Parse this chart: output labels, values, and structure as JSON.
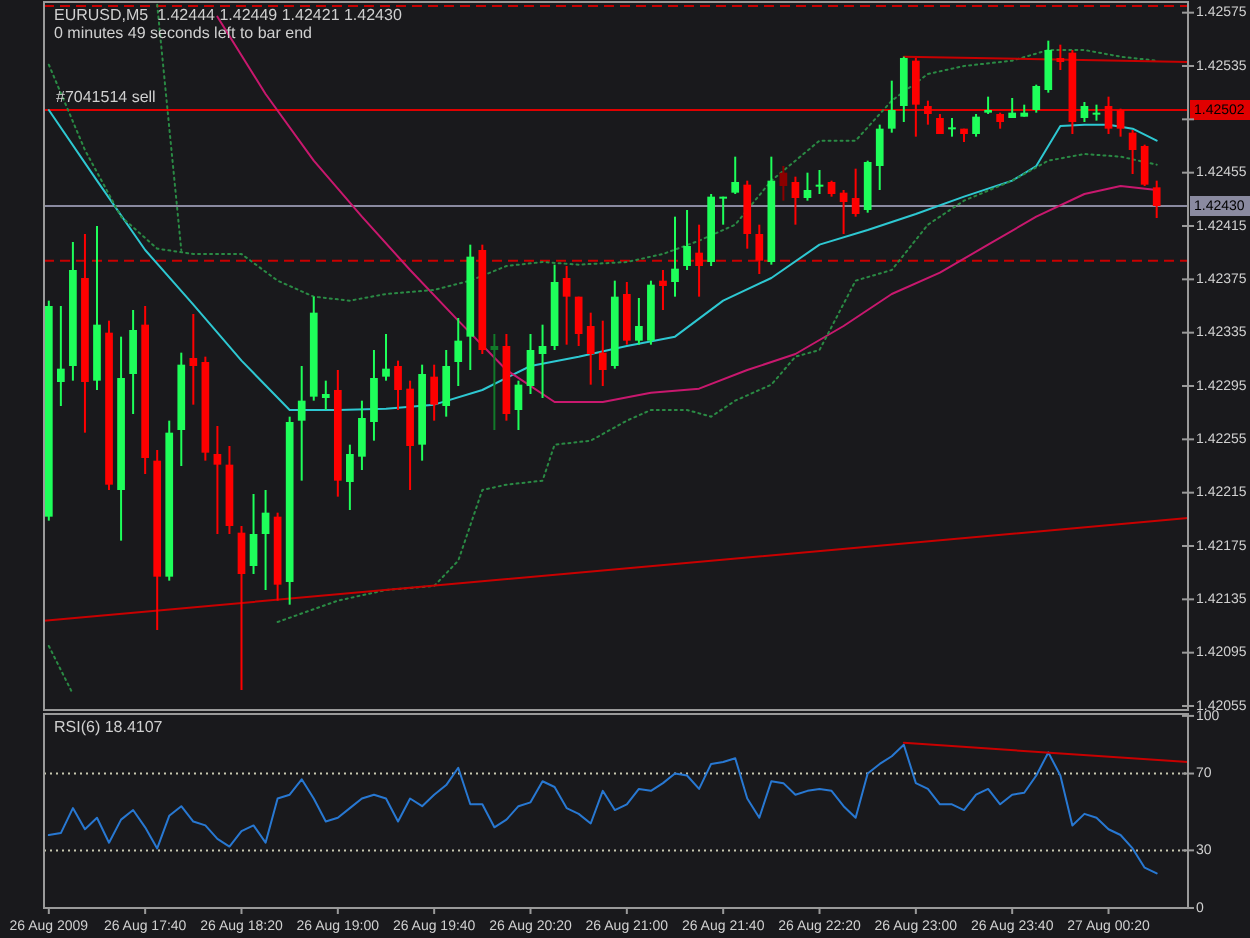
{
  "chart_data": [
    {
      "type": "candlestick",
      "title": "EURUSD,M5  1.42444 1.42449 1.42421 1.42430",
      "subtitle": "0 minutes 49 seconds left to bar end",
      "x": [
        "2009-08-26T17:00",
        "2009-08-26T17:05",
        "2009-08-26T17:10",
        "2009-08-26T17:15",
        "2009-08-26T17:20",
        "2009-08-26T17:25",
        "2009-08-26T17:30",
        "2009-08-26T17:35",
        "2009-08-26T17:40",
        "2009-08-26T17:45",
        "2009-08-26T17:50",
        "2009-08-26T17:55",
        "2009-08-26T18:00",
        "2009-08-26T18:05",
        "2009-08-26T18:10",
        "2009-08-26T18:15",
        "2009-08-26T18:20",
        "2009-08-26T18:25",
        "2009-08-26T18:30",
        "2009-08-26T18:35",
        "2009-08-26T18:40",
        "2009-08-26T18:45",
        "2009-08-26T18:50",
        "2009-08-26T18:55",
        "2009-08-26T19:00",
        "2009-08-26T19:05",
        "2009-08-26T19:10",
        "2009-08-26T19:15",
        "2009-08-26T19:20",
        "2009-08-26T19:25",
        "2009-08-26T19:30",
        "2009-08-26T19:35",
        "2009-08-26T19:40",
        "2009-08-26T19:45",
        "2009-08-26T19:50",
        "2009-08-26T19:55",
        "2009-08-26T20:00",
        "2009-08-26T20:05",
        "2009-08-26T20:10",
        "2009-08-26T20:15",
        "2009-08-26T20:20",
        "2009-08-26T20:25",
        "2009-08-26T20:30",
        "2009-08-26T20:35",
        "2009-08-26T20:40",
        "2009-08-26T20:45",
        "2009-08-26T20:50",
        "2009-08-26T20:55",
        "2009-08-26T21:00",
        "2009-08-26T21:05",
        "2009-08-26T21:10",
        "2009-08-26T21:15",
        "2009-08-26T21:20",
        "2009-08-26T21:25",
        "2009-08-26T21:30",
        "2009-08-26T21:35",
        "2009-08-26T21:40",
        "2009-08-26T21:45",
        "2009-08-26T21:50",
        "2009-08-26T21:55",
        "2009-08-26T22:00",
        "2009-08-26T22:05",
        "2009-08-26T22:10",
        "2009-08-26T22:15",
        "2009-08-26T22:20",
        "2009-08-26T22:25",
        "2009-08-26T22:30",
        "2009-08-26T22:35",
        "2009-08-26T22:40",
        "2009-08-26T22:45",
        "2009-08-26T22:50",
        "2009-08-26T22:55",
        "2009-08-26T23:00",
        "2009-08-26T23:05",
        "2009-08-26T23:10",
        "2009-08-26T23:15",
        "2009-08-26T23:20",
        "2009-08-26T23:25",
        "2009-08-26T23:30",
        "2009-08-26T23:35",
        "2009-08-26T23:40",
        "2009-08-26T23:45",
        "2009-08-26T23:50",
        "2009-08-26T23:55",
        "2009-08-27T00:00",
        "2009-08-27T00:05",
        "2009-08-27T00:10",
        "2009-08-27T00:15",
        "2009-08-27T00:20",
        "2009-08-27T00:25",
        "2009-08-27T00:30",
        "2009-08-27T00:35",
        "2009-08-27T00:40"
      ],
      "ohlc": [
        [
          1.42197,
          1.42359,
          1.42194,
          1.42355
        ],
        [
          1.42298,
          1.42355,
          1.4228,
          1.42308
        ],
        [
          1.4231,
          1.42403,
          1.42299,
          1.42382
        ],
        [
          1.42376,
          1.42409,
          1.4226,
          1.42298
        ],
        [
          1.42299,
          1.42415,
          1.42292,
          1.42341
        ],
        [
          1.42335,
          1.42344,
          1.42217,
          1.42221
        ],
        [
          1.42217,
          1.42332,
          1.42179,
          1.42301
        ],
        [
          1.42304,
          1.42352,
          1.42274,
          1.42337
        ],
        [
          1.42341,
          1.42355,
          1.42229,
          1.42241
        ],
        [
          1.42239,
          1.42247,
          1.42112,
          1.42152
        ],
        [
          1.42152,
          1.42269,
          1.42149,
          1.4226
        ],
        [
          1.42262,
          1.4232,
          1.42235,
          1.42311
        ],
        [
          1.42316,
          1.42349,
          1.42281,
          1.4231
        ],
        [
          1.42313,
          1.42317,
          1.42239,
          1.42245
        ],
        [
          1.42244,
          1.42265,
          1.42184,
          1.42236
        ],
        [
          1.42236,
          1.4225,
          1.42184,
          1.4219
        ],
        [
          1.42185,
          1.4219,
          1.42067,
          1.42154
        ],
        [
          1.4216,
          1.42214,
          1.42154,
          1.42184
        ],
        [
          1.42184,
          1.42217,
          1.42142,
          1.422
        ],
        [
          1.42197,
          1.422,
          1.42134,
          1.42146
        ],
        [
          1.42148,
          1.42272,
          1.42131,
          1.42268
        ],
        [
          1.42269,
          1.4231,
          1.42224,
          1.42284
        ],
        [
          1.42287,
          1.42362,
          1.42284,
          1.4235
        ],
        [
          1.42286,
          1.42299,
          1.42277,
          1.42289
        ],
        [
          1.42292,
          1.42307,
          1.42212,
          1.42224
        ],
        [
          1.42223,
          1.42251,
          1.42202,
          1.42244
        ],
        [
          1.42242,
          1.42284,
          1.42232,
          1.42271
        ],
        [
          1.42268,
          1.42322,
          1.42254,
          1.42301
        ],
        [
          1.42302,
          1.42334,
          1.42299,
          1.42308
        ],
        [
          1.4231,
          1.42314,
          1.42277,
          1.42292
        ],
        [
          1.42293,
          1.42299,
          1.42217,
          1.4225
        ],
        [
          1.42251,
          1.42311,
          1.42239,
          1.42304
        ],
        [
          1.42302,
          1.42311,
          1.42269,
          1.42281
        ],
        [
          1.4228,
          1.42322,
          1.42272,
          1.4231
        ],
        [
          1.42313,
          1.42346,
          1.42295,
          1.42329
        ],
        [
          1.42332,
          1.42401,
          1.42307,
          1.42392
        ],
        [
          1.42397,
          1.42401,
          1.42319,
          1.42322
        ],
        [
          1.42322,
          1.42334,
          1.42262,
          1.42325
        ],
        [
          1.42325,
          1.42334,
          1.42269,
          1.42274
        ],
        [
          1.42277,
          1.42299,
          1.42262,
          1.42296
        ],
        [
          1.42295,
          1.42334,
          1.42289,
          1.42322
        ],
        [
          1.42319,
          1.42341,
          1.42286,
          1.42325
        ],
        [
          1.42325,
          1.42386,
          1.42322,
          1.42373
        ],
        [
          1.42376,
          1.42385,
          1.42326,
          1.42362
        ],
        [
          1.42362,
          1.42362,
          1.42325,
          1.42334
        ],
        [
          1.4234,
          1.4235,
          1.42296,
          1.42319
        ],
        [
          1.4232,
          1.42344,
          1.42295,
          1.42307
        ],
        [
          1.4231,
          1.42374,
          1.42308,
          1.42362
        ],
        [
          1.42364,
          1.42373,
          1.42326,
          1.42329
        ],
        [
          1.42329,
          1.42361,
          1.42326,
          1.4234
        ],
        [
          1.42329,
          1.42374,
          1.42326,
          1.42371
        ],
        [
          1.42374,
          1.42382,
          1.42352,
          1.4237
        ],
        [
          1.42373,
          1.42422,
          1.42362,
          1.42383
        ],
        [
          1.42385,
          1.42427,
          1.42382,
          1.424
        ],
        [
          1.42395,
          1.42416,
          1.42362,
          1.42385
        ],
        [
          1.42388,
          1.42439,
          1.42385,
          1.42437
        ],
        [
          1.42436,
          1.42437,
          1.42416,
          1.42437
        ],
        [
          1.4244,
          1.42467,
          1.42439,
          1.42448
        ],
        [
          1.42446,
          1.42449,
          1.42398,
          1.42409
        ],
        [
          1.42409,
          1.42416,
          1.42379,
          1.42389
        ],
        [
          1.42388,
          1.42467,
          1.42386,
          1.42449
        ],
        [
          1.42455,
          1.4246,
          1.42434,
          1.42445
        ],
        [
          1.42448,
          1.42452,
          1.42416,
          1.42436
        ],
        [
          1.42436,
          1.42455,
          1.42434,
          1.42442
        ],
        [
          1.42445,
          1.42457,
          1.42439,
          1.42446
        ],
        [
          1.42448,
          1.42449,
          1.42437,
          1.42439
        ],
        [
          1.4244,
          1.42442,
          1.42409,
          1.42433
        ],
        [
          1.42436,
          1.42458,
          1.42422,
          1.42424
        ],
        [
          1.42427,
          1.42464,
          1.42425,
          1.42463
        ],
        [
          1.4246,
          1.42491,
          1.42442,
          1.42488
        ],
        [
          1.42488,
          1.42524,
          1.42485,
          1.42502
        ],
        [
          1.42505,
          1.42542,
          1.42493,
          1.42541
        ],
        [
          1.42539,
          1.42541,
          1.42482,
          1.42506
        ],
        [
          1.42505,
          1.42509,
          1.42491,
          1.42499
        ],
        [
          1.42496,
          1.42499,
          1.42484,
          1.42484
        ],
        [
          1.42488,
          1.42496,
          1.42482,
          1.42489
        ],
        [
          1.42488,
          1.42488,
          1.42478,
          1.42484
        ],
        [
          1.42484,
          1.42499,
          1.42482,
          1.42497
        ],
        [
          1.425,
          1.42512,
          1.42499,
          1.42502
        ],
        [
          1.42499,
          1.425,
          1.42488,
          1.42493
        ],
        [
          1.42496,
          1.42511,
          1.42496,
          1.425
        ],
        [
          1.42497,
          1.42506,
          1.42497,
          1.425
        ],
        [
          1.42502,
          1.42521,
          1.425,
          1.4252
        ],
        [
          1.42517,
          1.42554,
          1.42515,
          1.42547
        ],
        [
          1.42541,
          1.42551,
          1.42532,
          1.42538
        ],
        [
          1.42545,
          1.42547,
          1.42484,
          1.42493
        ],
        [
          1.42496,
          1.42508,
          1.42493,
          1.42505
        ],
        [
          1.42499,
          1.42506,
          1.42494,
          1.425
        ],
        [
          1.42505,
          1.42512,
          1.42484,
          1.42488
        ],
        [
          1.42502,
          1.42503,
          1.42482,
          1.42488
        ],
        [
          1.42485,
          1.42487,
          1.42454,
          1.42472
        ],
        [
          1.42475,
          1.42476,
          1.42445,
          1.42446
        ],
        [
          1.42444,
          1.42449,
          1.42421,
          1.4243
        ]
      ],
      "colors": [
        "#1eff5a",
        "#1eff5a",
        "#1eff5a",
        "#ff0000",
        "#1eff5a",
        "#ff0000",
        "#1eff5a",
        "#1eff5a",
        "#ff0000",
        "#ff0000",
        "#1eff5a",
        "#1eff5a",
        "#ff0000",
        "#ff0000",
        "#ff0000",
        "#ff0000",
        "#ff0000",
        "#1eff5a",
        "#1eff5a",
        "#ff0000",
        "#1eff5a",
        "#1eff5a",
        "#1eff5a",
        "#1eff5a",
        "#ff0000",
        "#1eff5a",
        "#1eff5a",
        "#1eff5a",
        "#1eff5a",
        "#ff0000",
        "#ff0000",
        "#1eff5a",
        "#ff0000",
        "#1eff5a",
        "#1eff5a",
        "#1eff5a",
        "#ff0000",
        "#127a2a",
        "#ff0000",
        "#1eff5a",
        "#1eff5a",
        "#1eff5a",
        "#1eff5a",
        "#ff0000",
        "#ff0000",
        "#ff0000",
        "#ff0000",
        "#1eff5a",
        "#ff0000",
        "#1eff5a",
        "#1eff5a",
        "#ff0000",
        "#1eff5a",
        "#1eff5a",
        "#ff0000",
        "#1eff5a",
        "#1eff5a",
        "#1eff5a",
        "#ff0000",
        "#ff0000",
        "#1eff5a",
        "#8b0000",
        "#ff0000",
        "#1eff5a",
        "#1eff5a",
        "#ff0000",
        "#ff0000",
        "#ff0000",
        "#1eff5a",
        "#1eff5a",
        "#1eff5a",
        "#1eff5a",
        "#ff0000",
        "#ff0000",
        "#ff0000",
        "#1eff5a",
        "#ff0000",
        "#1eff5a",
        "#1eff5a",
        "#ff0000",
        "#1eff5a",
        "#1eff5a",
        "#1eff5a",
        "#1eff5a",
        "#ff0000",
        "#ff0000",
        "#1eff5a",
        "#1eff5a",
        "#ff0000",
        "#ff0000",
        "#ff0000",
        "#ff0000",
        "#ff0000"
      ],
      "series": [
        {
          "type": "line",
          "color": "#2ec8d2",
          "x": [
            "2009-08-26T17:00",
            "2009-08-26T17:20",
            "2009-08-26T17:40",
            "2009-08-26T18:00",
            "2009-08-26T18:20",
            "2009-08-26T18:40",
            "2009-08-26T19:00",
            "2009-08-26T19:20",
            "2009-08-26T19:40",
            "2009-08-26T20:00",
            "2009-08-26T20:20",
            "2009-08-26T20:40",
            "2009-08-26T21:00",
            "2009-08-26T21:20",
            "2009-08-26T21:40",
            "2009-08-26T22:00",
            "2009-08-26T22:20",
            "2009-08-26T22:40",
            "2009-08-26T23:00",
            "2009-08-26T23:20",
            "2009-08-26T23:40",
            "2009-08-26T23:50",
            "2009-08-27T00:00",
            "2009-08-27T00:10",
            "2009-08-27T00:20",
            "2009-08-27T00:30",
            "2009-08-27T00:40"
          ],
          "values": [
            1.42502,
            1.42449,
            1.42397,
            1.42356,
            1.42314,
            1.42277,
            1.42277,
            1.42278,
            1.42281,
            1.42292,
            1.4231,
            1.42317,
            1.42325,
            1.42332,
            1.42359,
            1.42376,
            1.42401,
            1.42412,
            1.42424,
            1.42437,
            1.42449,
            1.4246,
            1.4249,
            1.42491,
            1.42491,
            1.42488,
            1.42479
          ]
        },
        {
          "type": "line",
          "color": "#c8186e",
          "x": [
            "2009-08-26T18:10",
            "2009-08-26T18:30",
            "2009-08-26T18:50",
            "2009-08-26T19:10",
            "2009-08-26T19:30",
            "2009-08-26T19:50",
            "2009-08-26T20:10",
            "2009-08-26T20:30",
            "2009-08-26T20:50",
            "2009-08-26T21:10",
            "2009-08-26T21:30",
            "2009-08-26T21:50",
            "2009-08-26T22:10",
            "2009-08-26T22:30",
            "2009-08-26T22:50",
            "2009-08-26T23:10",
            "2009-08-26T23:30",
            "2009-08-26T23:50",
            "2009-08-27T00:10",
            "2009-08-27T00:25",
            "2009-08-27T00:40"
          ],
          "values": [
            1.42572,
            1.42514,
            1.42464,
            1.42422,
            1.42382,
            1.42344,
            1.42307,
            1.42283,
            1.42283,
            1.4229,
            1.42293,
            1.42307,
            1.42319,
            1.4234,
            1.42364,
            1.4238,
            1.42401,
            1.42422,
            1.42439,
            1.42445,
            1.42442
          ]
        },
        {
          "type": "line",
          "color": "#2a8a44",
          "line_style": "dotted",
          "x": [
            "2009-08-26T17:00",
            "2009-08-26T17:15",
            "2009-08-26T17:30",
            "2009-08-26T17:45",
            "2009-08-26T18:00",
            "2009-08-26T18:20",
            "2009-08-26T18:35",
            "2009-08-26T18:50",
            "2009-08-26T19:05",
            "2009-08-26T19:20",
            "2009-08-26T19:40",
            "2009-08-26T19:55",
            "2009-08-26T20:10",
            "2009-08-26T20:25",
            "2009-08-26T20:40",
            "2009-08-26T21:00",
            "2009-08-26T21:15",
            "2009-08-26T21:30",
            "2009-08-26T21:45",
            "2009-08-26T22:00",
            "2009-08-26T22:20",
            "2009-08-26T22:35",
            "2009-08-26T22:50",
            "2009-08-26T23:05",
            "2009-08-26T23:20",
            "2009-08-26T23:40",
            "2009-08-26T23:55",
            "2009-08-27T00:10",
            "2009-08-27T00:25",
            "2009-08-27T00:40"
          ],
          "values": [
            1.42536,
            1.42472,
            1.42422,
            1.42398,
            1.42394,
            1.42394,
            1.42374,
            1.42362,
            1.42359,
            1.42364,
            1.42367,
            1.42374,
            1.42385,
            1.42388,
            1.42386,
            1.42388,
            1.42394,
            1.42404,
            1.42416,
            1.42449,
            1.42479,
            1.42479,
            1.42509,
            1.42529,
            1.42535,
            1.42539,
            1.42547,
            1.42547,
            1.42542,
            1.42539
          ]
        },
        {
          "type": "line",
          "color": "#2a8a44",
          "line_style": "dotted",
          "x": [
            "2009-08-26T17:00",
            "2009-08-26T17:10",
            "2009-08-26T17:20",
            "2009-08-26T18:35",
            "2009-08-26T19:00",
            "2009-08-26T19:20",
            "2009-08-26T19:40",
            "2009-08-26T19:50",
            "2009-08-26T20:00",
            "2009-08-26T20:10",
            "2009-08-26T20:25",
            "2009-08-26T20:30",
            "2009-08-26T20:45",
            "2009-08-26T21:00",
            "2009-08-26T21:10",
            "2009-08-26T21:25",
            "2009-08-26T21:35",
            "2009-08-26T21:45",
            "2009-08-26T22:00",
            "2009-08-26T22:10",
            "2009-08-26T22:20",
            "2009-08-26T22:35",
            "2009-08-26T22:50",
            "2009-08-26T23:05",
            "2009-08-26T23:20",
            "2009-08-26T23:40",
            "2009-08-26T23:55",
            "2009-08-27T00:10",
            "2009-08-27T00:25",
            "2009-08-27T00:40"
          ],
          "values": [
            1.421,
            1.42064,
            null,
            1.42118,
            1.42134,
            1.42142,
            1.42145,
            1.42164,
            1.42217,
            1.42221,
            1.42224,
            1.42251,
            1.42254,
            1.42269,
            1.42277,
            1.42277,
            1.42272,
            1.42284,
            1.42296,
            1.42317,
            1.42322,
            1.42374,
            1.42382,
            1.42416,
            1.42434,
            1.42449,
            1.42464,
            1.42469,
            1.42467,
            1.42461
          ]
        },
        {
          "type": "line",
          "color": "#2a8a44",
          "line_style": "dotted",
          "x": [
            "2009-08-26T17:45",
            "2009-08-26T17:55"
          ],
          "values": [
            1.42581,
            1.42397
          ]
        },
        {
          "type": "line",
          "color": "#c80000",
          "x": [
            "2009-08-26T16:58",
            "2009-08-27T00:53"
          ],
          "values": [
            1.42119,
            1.42196
          ]
        },
        {
          "type": "line",
          "color": "#c80000",
          "x": [
            "2009-08-26T22:55",
            "2009-08-27T00:53"
          ],
          "values": [
            1.42542,
            1.42538
          ]
        }
      ],
      "ref_lines": [
        {
          "axis": "y",
          "value": 1.4258,
          "color": "#c80000",
          "line_style": "dashed"
        },
        {
          "axis": "y",
          "value": 1.42502,
          "label": "1.42502",
          "color": "#e00000"
        },
        {
          "axis": "y",
          "value": 1.4243,
          "label": "1.42430",
          "color": "#8a8aa0"
        },
        {
          "axis": "y",
          "value": 1.42389,
          "color": "#c80000",
          "line_style": "dashed"
        }
      ],
      "annotations": [
        "#7041514 sell"
      ],
      "xlim": [
        "2009-08-26T16:58",
        "2009-08-27T00:53"
      ],
      "ylim": [
        1.42052,
        1.42583
      ],
      "yticks": [
        1.42575,
        1.42535,
        {
          "value": 1.42495,
          "label": null
        },
        1.42455,
        1.42415,
        1.42375,
        1.42335,
        1.42295,
        1.42255,
        1.42215,
        1.42175,
        1.42135,
        1.42095,
        1.42055
      ],
      "tick_labels": "y"
    },
    {
      "type": "line",
      "title": "RSI(6) 18.4107",
      "x": [
        "2009-08-26T17:00",
        "2009-08-26T17:05",
        "2009-08-26T17:10",
        "2009-08-26T17:15",
        "2009-08-26T17:20",
        "2009-08-26T17:25",
        "2009-08-26T17:30",
        "2009-08-26T17:35",
        "2009-08-26T17:40",
        "2009-08-26T17:45",
        "2009-08-26T17:50",
        "2009-08-26T17:55",
        "2009-08-26T18:00",
        "2009-08-26T18:05",
        "2009-08-26T18:10",
        "2009-08-26T18:15",
        "2009-08-26T18:20",
        "2009-08-26T18:25",
        "2009-08-26T18:30",
        "2009-08-26T18:35",
        "2009-08-26T18:40",
        "2009-08-26T18:45",
        "2009-08-26T18:50",
        "2009-08-26T18:55",
        "2009-08-26T19:00",
        "2009-08-26T19:05",
        "2009-08-26T19:10",
        "2009-08-26T19:15",
        "2009-08-26T19:20",
        "2009-08-26T19:25",
        "2009-08-26T19:30",
        "2009-08-26T19:35",
        "2009-08-26T19:40",
        "2009-08-26T19:45",
        "2009-08-26T19:50",
        "2009-08-26T19:55",
        "2009-08-26T20:00",
        "2009-08-26T20:05",
        "2009-08-26T20:10",
        "2009-08-26T20:15",
        "2009-08-26T20:20",
        "2009-08-26T20:25",
        "2009-08-26T20:30",
        "2009-08-26T20:35",
        "2009-08-26T20:40",
        "2009-08-26T20:45",
        "2009-08-26T20:50",
        "2009-08-26T20:55",
        "2009-08-26T21:00",
        "2009-08-26T21:05",
        "2009-08-26T21:10",
        "2009-08-26T21:15",
        "2009-08-26T21:20",
        "2009-08-26T21:25",
        "2009-08-26T21:30",
        "2009-08-26T21:35",
        "2009-08-26T21:40",
        "2009-08-26T21:45",
        "2009-08-26T21:50",
        "2009-08-26T21:55",
        "2009-08-26T22:00",
        "2009-08-26T22:05",
        "2009-08-26T22:10",
        "2009-08-26T22:15",
        "2009-08-26T22:20",
        "2009-08-26T22:25",
        "2009-08-26T22:30",
        "2009-08-26T22:35",
        "2009-08-26T22:40",
        "2009-08-26T22:45",
        "2009-08-26T22:50",
        "2009-08-26T22:55",
        "2009-08-26T23:00",
        "2009-08-26T23:05",
        "2009-08-26T23:10",
        "2009-08-26T23:15",
        "2009-08-26T23:20",
        "2009-08-26T23:25",
        "2009-08-26T23:30",
        "2009-08-26T23:35",
        "2009-08-26T23:40",
        "2009-08-26T23:45",
        "2009-08-26T23:50",
        "2009-08-26T23:55",
        "2009-08-27T00:00",
        "2009-08-27T00:05",
        "2009-08-27T00:10",
        "2009-08-27T00:15",
        "2009-08-27T00:20",
        "2009-08-27T00:25",
        "2009-08-27T00:30",
        "2009-08-27T00:35",
        "2009-08-27T00:40"
      ],
      "series": [
        {
          "color": "#2878d2",
          "values": [
            38,
            39,
            52,
            41,
            47,
            34,
            46,
            51,
            42,
            31,
            48,
            53,
            45,
            43,
            36,
            32,
            40,
            43,
            34,
            57,
            59,
            67,
            57,
            45,
            47,
            52,
            57,
            59,
            57,
            45,
            57,
            53,
            59,
            64,
            73,
            54,
            54,
            42,
            46,
            53,
            55,
            66,
            63,
            52,
            49,
            44,
            61,
            51,
            54,
            62,
            61,
            65,
            70,
            69,
            62,
            75,
            76,
            78,
            57,
            47,
            66,
            65,
            59,
            61,
            62,
            61,
            53,
            47,
            70,
            75,
            79,
            85,
            65,
            62,
            54,
            54,
            51,
            59,
            62,
            54,
            59,
            60,
            69,
            81,
            69,
            43,
            49,
            47,
            41,
            38,
            31,
            21,
            18
          ]
        },
        {
          "type": "line",
          "color": "#c80000",
          "x": [
            "2009-08-26T22:55",
            "2009-08-27T00:53"
          ],
          "values": [
            86,
            76
          ]
        }
      ],
      "ref_lines": [
        {
          "axis": "y",
          "value": 70,
          "color": "#c8c8b0",
          "line_style": "dotted"
        },
        {
          "axis": "y",
          "value": 30,
          "color": "#c8c8b0",
          "line_style": "dotted"
        }
      ],
      "xlim": [
        "2009-08-26T16:58",
        "2009-08-27T00:53"
      ],
      "xticks": [
        {
          "value": "2009-08-26T17:00",
          "label": "26 Aug 2009"
        },
        {
          "value": "2009-08-26T17:40",
          "label": "26 Aug 17:40"
        },
        {
          "value": "2009-08-26T18:20",
          "label": "26 Aug 18:20"
        },
        {
          "value": "2009-08-26T19:00",
          "label": "26 Aug 19:00"
        },
        {
          "value": "2009-08-26T19:40",
          "label": "26 Aug 19:40"
        },
        {
          "value": "2009-08-26T20:20",
          "label": "26 Aug 20:20"
        },
        {
          "value": "2009-08-26T21:00",
          "label": "26 Aug 21:00"
        },
        {
          "value": "2009-08-26T21:40",
          "label": "26 Aug 21:40"
        },
        {
          "value": "2009-08-26T22:20",
          "label": "26 Aug 22:20"
        },
        {
          "value": "2009-08-26T23:00",
          "label": "26 Aug 23:00"
        },
        {
          "value": "2009-08-26T23:40",
          "label": "26 Aug 23:40"
        },
        {
          "value": "2009-08-27T00:20",
          "label": "27 Aug 00:20"
        }
      ],
      "ylim": [
        0,
        101
      ],
      "yticks": [
        0,
        30,
        70,
        100
      ]
    }
  ]
}
